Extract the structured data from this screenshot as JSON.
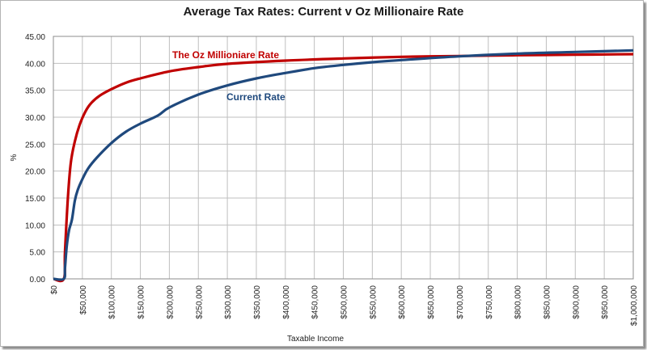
{
  "chart_data": {
    "type": "line",
    "title": "Average Tax Rates: Current v Oz Millionaire Rate",
    "xlabel": "Taxable Income",
    "ylabel": "%",
    "xlim": [
      0,
      1000000
    ],
    "ylim": [
      0,
      45
    ],
    "grid": true,
    "y_ticks": [
      "0.00",
      "5.00",
      "10.00",
      "15.00",
      "20.00",
      "25.00",
      "30.00",
      "35.00",
      "40.00",
      "45.00"
    ],
    "y_tick_values": [
      0,
      5,
      10,
      15,
      20,
      25,
      30,
      35,
      40,
      45
    ],
    "x_ticks": [
      "$0",
      "$50,000",
      "$100,000",
      "$150,000",
      "$200,000",
      "$250,000",
      "$300,000",
      "$350,000",
      "$400,000",
      "$450,000",
      "$500,000",
      "$550,000",
      "$600,000",
      "$650,000",
      "$700,000",
      "$750,000",
      "$800,000",
      "$850,000",
      "$900,000",
      "$950,000",
      "$1,000,000"
    ],
    "x_tick_values": [
      0,
      50000,
      100000,
      150000,
      200000,
      250000,
      300000,
      350000,
      400000,
      450000,
      500000,
      550000,
      600000,
      650000,
      700000,
      750000,
      800000,
      850000,
      900000,
      950000,
      1000000
    ],
    "series": [
      {
        "name": "The Oz Millioniare Rate",
        "color": "#c00000",
        "x": [
          0,
          18000,
          20000,
          25000,
          30000,
          37000,
          45000,
          55000,
          65000,
          80000,
          100000,
          125000,
          150000,
          200000,
          250000,
          300000,
          400000,
          500000,
          600000,
          700000,
          800000,
          900000,
          1000000
        ],
        "values": [
          0,
          0,
          5,
          15,
          21.5,
          25.5,
          28.5,
          31,
          32.6,
          34,
          35.2,
          36.4,
          37.2,
          38.5,
          39.3,
          39.9,
          40.5,
          40.9,
          41.2,
          41.35,
          41.5,
          41.6,
          41.7
        ]
      },
      {
        "name": "Current Rate",
        "color": "#1f497d",
        "x": [
          0,
          18000,
          20000,
          23000,
          27000,
          32000,
          37000,
          42000,
          50000,
          60000,
          75000,
          100000,
          125000,
          150000,
          180000,
          200000,
          250000,
          300000,
          350000,
          400000,
          450000,
          500000,
          550000,
          600000,
          700000,
          800000,
          900000,
          1000000
        ],
        "values": [
          0,
          0,
          2,
          6,
          9,
          11,
          14.5,
          16.5,
          18.5,
          20.5,
          22.5,
          25.2,
          27.3,
          28.8,
          30.3,
          31.8,
          34.2,
          35.9,
          37.2,
          38.2,
          39.1,
          39.7,
          40.2,
          40.6,
          41.3,
          41.8,
          42.1,
          42.4
        ]
      }
    ],
    "annotations": [
      {
        "text": "The Oz Millioniare Rate",
        "series": 0
      },
      {
        "text": "Current Rate",
        "series": 1
      }
    ]
  }
}
